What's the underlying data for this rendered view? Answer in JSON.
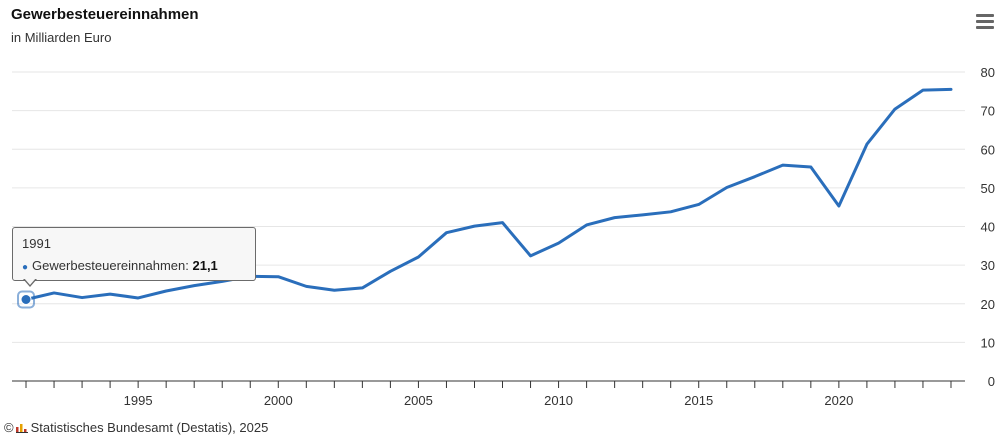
{
  "header": {
    "title": "Gewerbesteuereinnahmen",
    "subtitle": "in Milliarden Euro"
  },
  "menu": {
    "icon": "hamburger-menu-icon"
  },
  "tooltip": {
    "year": "1991",
    "label": "Gewerbesteuereinnahmen: ",
    "value": "21,1"
  },
  "source": {
    "copyright": "©",
    "text": "Statistisches Bundesamt (Destatis), 2025",
    "logo_icon": "destatis-logo-icon"
  },
  "colors": {
    "line": "#2a6ebb",
    "grid": "#e6e6e6",
    "axis": "#333333"
  },
  "chart_data": {
    "type": "line",
    "title": "Gewerbesteuereinnahmen",
    "subtitle": "in Milliarden Euro",
    "xlabel": "",
    "ylabel": "",
    "x_tick_labels": [
      "1995",
      "2000",
      "2005",
      "2010",
      "2015",
      "2020"
    ],
    "y_tick_labels": [
      "0",
      "10",
      "20",
      "30",
      "40",
      "50",
      "60",
      "70",
      "80"
    ],
    "ylim": [
      0,
      80
    ],
    "xlim": [
      1990.5,
      2024.5
    ],
    "grid": true,
    "y_axis_position": "right",
    "series": [
      {
        "name": "Gewerbesteuereinnahmen",
        "x": [
          1991,
          1992,
          1993,
          1994,
          1995,
          1996,
          1997,
          1998,
          1999,
          2000,
          2001,
          2002,
          2003,
          2004,
          2005,
          2006,
          2007,
          2008,
          2009,
          2010,
          2011,
          2012,
          2013,
          2014,
          2015,
          2016,
          2017,
          2018,
          2019,
          2020,
          2021,
          2022,
          2023,
          2024
        ],
        "values": [
          21.1,
          22.8,
          21.6,
          22.5,
          21.5,
          23.3,
          24.7,
          25.8,
          27.1,
          27.0,
          24.5,
          23.5,
          24.1,
          28.4,
          32.1,
          38.4,
          40.1,
          41.0,
          32.4,
          35.7,
          40.4,
          42.3,
          43.0,
          43.8,
          45.7,
          50.1,
          52.9,
          55.9,
          55.4,
          45.3,
          61.3,
          70.4,
          75.3,
          75.5
        ]
      }
    ],
    "highlighted_point": {
      "x": 1991,
      "y": 21.1
    }
  }
}
